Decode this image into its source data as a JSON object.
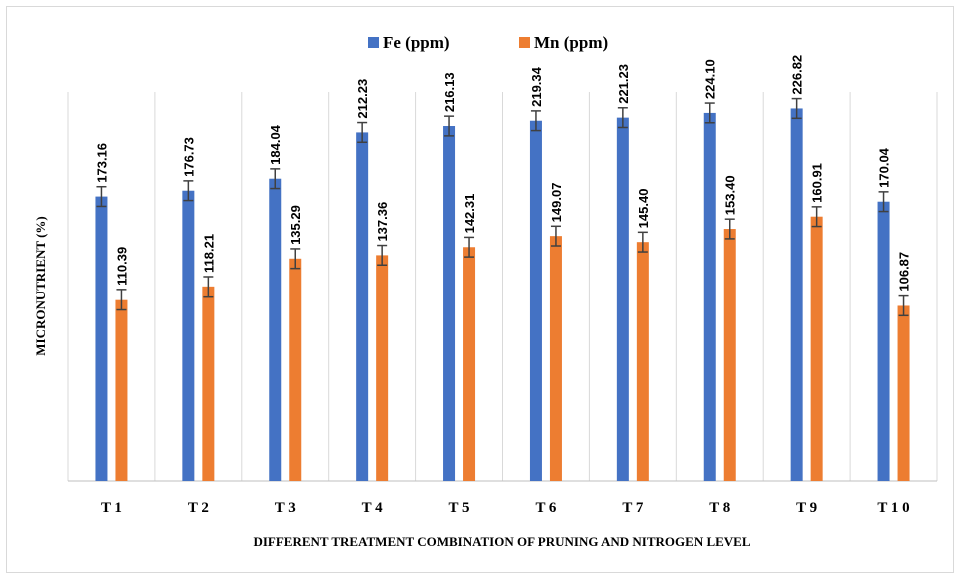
{
  "chart_data": {
    "type": "bar",
    "xlabel": "DIFFERENT TREATMENT COMBINATION OF PRUNING AND NITROGEN LEVEL",
    "ylabel": "MICRONUTRIENT (%)",
    "categories": [
      "T 1",
      "T 2",
      "T 3",
      "T 4",
      "T 5",
      "T 6",
      "T 7",
      "T 8",
      "T 9",
      "T 1 0"
    ],
    "series": [
      {
        "name": "Fe (ppm)",
        "color": "#4472C4",
        "values": [
          173.16,
          176.73,
          184.04,
          212.23,
          216.13,
          219.34,
          221.23,
          224.1,
          226.82,
          170.04
        ],
        "labels": [
          "173.16",
          "176.73",
          "184.04",
          "212.23",
          "216.13",
          "219.34",
          "221.23",
          "224.10",
          "226.82",
          "170.04"
        ]
      },
      {
        "name": "Mn (ppm)",
        "color": "#ED7D31",
        "values": [
          110.39,
          118.21,
          135.29,
          137.36,
          142.31,
          149.07,
          145.4,
          153.4,
          160.91,
          106.87
        ],
        "labels": [
          "110.39",
          "118.21",
          "135.29",
          "137.36",
          "142.31",
          "149.07",
          "145.40",
          "153.40",
          "160.91",
          "106.87"
        ]
      }
    ],
    "error": 6,
    "ylim": [
      0,
      250
    ],
    "grid": "vertical category separators",
    "legend": "top-center"
  }
}
